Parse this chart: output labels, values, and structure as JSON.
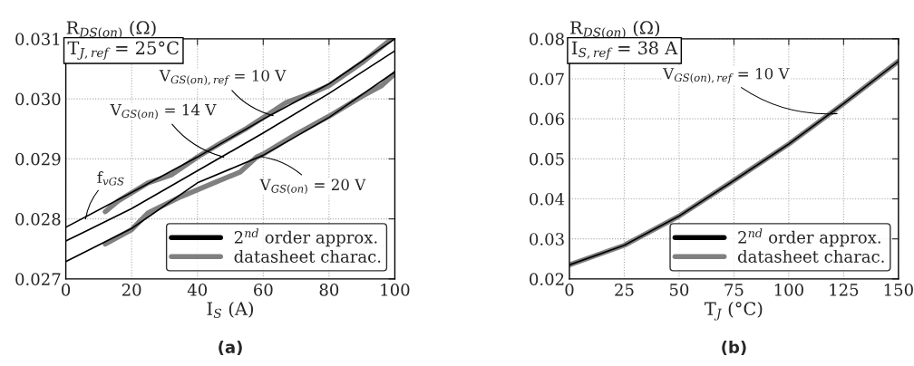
{
  "chart_data": [
    {
      "type": "line",
      "xlabel": "I$_{S}$ (A)",
      "ylabel": "R$_{DS(on)}$ (Ω)",
      "xlim": [
        0,
        100
      ],
      "ylim": [
        0.027,
        0.031
      ],
      "xticks": [
        0,
        20,
        40,
        60,
        80,
        100
      ],
      "yticks": [
        {
          "value": 0.027,
          "label": "0.027"
        },
        {
          "value": 0.028,
          "label": "0.028"
        },
        {
          "value": 0.029,
          "label": "0.029"
        },
        {
          "value": 0.03,
          "label": "0.030"
        },
        {
          "value": 0.031,
          "label": "0.031"
        }
      ],
      "grid": true,
      "legend": "bottom right",
      "series": [
        {
          "name": "datasheet charac.",
          "color": "#808080",
          "x": [
            12,
            16,
            25,
            32,
            40,
            47,
            55,
            62,
            67,
            75,
            80,
            90,
            99
          ],
          "values": [
            0.02812,
            0.0283,
            0.0286,
            0.02873,
            0.02903,
            0.02926,
            0.02951,
            0.02976,
            0.02994,
            0.0301,
            0.03022,
            0.0306,
            0.031
          ]
        },
        {
          "color": "#808080",
          "x": [
            12,
            20,
            25,
            35,
            45,
            53,
            58,
            60,
            70,
            80,
            90,
            96,
            100
          ],
          "values": [
            0.02758,
            0.02782,
            0.0281,
            0.02837,
            0.0286,
            0.02878,
            0.02903,
            0.02908,
            0.02941,
            0.02971,
            0.03004,
            0.03022,
            0.03042
          ]
        },
        {
          "name": "2$^{nd}$ order approx.",
          "color": "#000000",
          "x": [
            0,
            20,
            40,
            60,
            80,
            100
          ],
          "values": [
            0.02786,
            0.02844,
            0.02903,
            0.02966,
            0.03025,
            0.031
          ]
        },
        {
          "color": "#000000",
          "x": [
            0,
            20,
            40,
            60,
            80,
            100
          ],
          "values": [
            0.02763,
            0.02817,
            0.0288,
            0.02943,
            0.03009,
            0.0308
          ]
        },
        {
          "color": "#000000",
          "x": [
            0,
            20,
            40,
            60,
            80,
            100
          ],
          "values": [
            0.02729,
            0.02784,
            0.0286,
            0.02906,
            0.02969,
            0.03045
          ]
        }
      ],
      "annotations": [
        "T$_{J,ref}$ = 25°C",
        "(a)",
        {
          "text": "V$_{GS(on),ref}$ = 10 V",
          "x": 63,
          "y": 0.02972
        },
        {
          "text": "V$_{GS(on)}$ = 14 V",
          "x": 48,
          "y": 0.02903
        },
        {
          "text": "V$_{GS(on)}$ = 20 V",
          "x": 59,
          "y": 0.02904
        },
        {
          "text": "f$_{vGS}$",
          "x": 6,
          "y": 0.028
        }
      ]
    },
    {
      "type": "line",
      "xlabel": "T$_{J}$ (°C)",
      "ylabel": "R$_{DS(on)}$ (Ω)",
      "xlim": [
        0,
        150
      ],
      "ylim": [
        0.02,
        0.08
      ],
      "xticks": [
        0,
        25,
        50,
        75,
        100,
        125,
        150
      ],
      "yticks": [
        {
          "value": 0.02,
          "label": "0.02"
        },
        {
          "value": 0.03,
          "label": "0.03"
        },
        {
          "value": 0.04,
          "label": "0.04"
        },
        {
          "value": 0.05,
          "label": "0.05"
        },
        {
          "value": 0.06,
          "label": "0.06"
        },
        {
          "value": 0.07,
          "label": "0.07"
        },
        {
          "value": 0.08,
          "label": "0.08"
        }
      ],
      "grid": true,
      "legend": "bottom right",
      "series": [
        {
          "name": "datasheet charac.",
          "color": "#808080",
          "x": [
            0,
            25,
            50,
            75,
            100,
            125,
            150
          ],
          "values": [
            0.0235,
            0.0284,
            0.0357,
            0.0446,
            0.0537,
            0.0638,
            0.0744
          ]
        },
        {
          "name": "2$^{nd}$ order approx.",
          "color": "#000000",
          "x": [
            0,
            25,
            50,
            75,
            100,
            125,
            150
          ],
          "values": [
            0.0235,
            0.0284,
            0.0357,
            0.0446,
            0.0537,
            0.0638,
            0.0744
          ]
        }
      ],
      "annotations": [
        "I$_{S,ref}$ = 38 A",
        "(b)",
        {
          "text": "V$_{GS(on),ref}$ = 10 V",
          "x": 122,
          "y": 0.0613
        }
      ]
    }
  ]
}
